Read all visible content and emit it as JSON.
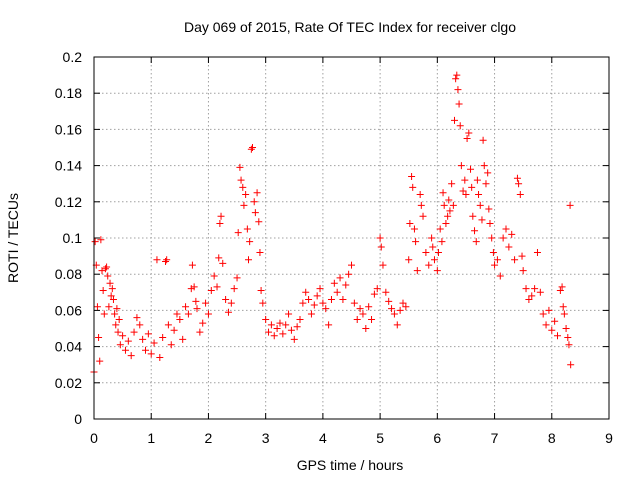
{
  "chart_data": {
    "type": "scatter",
    "title": "Day 069 of 2015, Rate Of TEC Index for receiver clgo",
    "xlabel": "GPS time / hours",
    "ylabel": "ROTI / TECUs",
    "xlim": [
      0,
      9
    ],
    "ylim": [
      0,
      0.2
    ],
    "x_ticks": [
      0,
      1,
      2,
      3,
      4,
      5,
      6,
      7,
      8,
      9
    ],
    "x_tick_labels": [
      "0",
      "1",
      "2",
      "3",
      "4",
      "5",
      "6",
      "7",
      "8",
      "9"
    ],
    "y_ticks": [
      0,
      0.02,
      0.04,
      0.06,
      0.08,
      0.1,
      0.12,
      0.14,
      0.16,
      0.18,
      0.2
    ],
    "y_tick_labels": [
      "0",
      "0.02",
      "0.04",
      "0.06",
      "0.08",
      "0.1",
      "0.12",
      "0.14",
      "0.16",
      "0.18",
      "0.2"
    ],
    "grid": true,
    "marker": "+",
    "marker_color": "#ff0000",
    "series": [
      {
        "name": "ROTI",
        "color": "#ff0000",
        "points": [
          [
            0.0,
            0.026
          ],
          [
            0.02,
            0.098
          ],
          [
            0.04,
            0.085
          ],
          [
            0.06,
            0.062
          ],
          [
            0.08,
            0.045
          ],
          [
            0.1,
            0.032
          ],
          [
            0.12,
            0.099
          ],
          [
            0.14,
            0.082
          ],
          [
            0.16,
            0.071
          ],
          [
            0.18,
            0.058
          ],
          [
            0.2,
            0.083
          ],
          [
            0.22,
            0.084
          ],
          [
            0.24,
            0.079
          ],
          [
            0.26,
            0.062
          ],
          [
            0.28,
            0.075
          ],
          [
            0.3,
            0.068
          ],
          [
            0.32,
            0.072
          ],
          [
            0.34,
            0.066
          ],
          [
            0.36,
            0.058
          ],
          [
            0.38,
            0.052
          ],
          [
            0.4,
            0.061
          ],
          [
            0.42,
            0.048
          ],
          [
            0.44,
            0.055
          ],
          [
            0.46,
            0.041
          ],
          [
            0.5,
            0.046
          ],
          [
            0.55,
            0.038
          ],
          [
            0.6,
            0.043
          ],
          [
            0.65,
            0.035
          ],
          [
            0.7,
            0.048
          ],
          [
            0.75,
            0.056
          ],
          [
            0.8,
            0.052
          ],
          [
            0.85,
            0.044
          ],
          [
            0.9,
            0.038
          ],
          [
            0.95,
            0.047
          ],
          [
            1.0,
            0.036
          ],
          [
            1.05,
            0.042
          ],
          [
            1.1,
            0.088
          ],
          [
            1.15,
            0.034
          ],
          [
            1.2,
            0.045
          ],
          [
            1.25,
            0.087
          ],
          [
            1.27,
            0.088
          ],
          [
            1.3,
            0.052
          ],
          [
            1.35,
            0.041
          ],
          [
            1.4,
            0.049
          ],
          [
            1.45,
            0.058
          ],
          [
            1.5,
            0.055
          ],
          [
            1.55,
            0.044
          ],
          [
            1.6,
            0.062
          ],
          [
            1.65,
            0.058
          ],
          [
            1.7,
            0.072
          ],
          [
            1.72,
            0.085
          ],
          [
            1.75,
            0.073
          ],
          [
            1.78,
            0.065
          ],
          [
            1.8,
            0.061
          ],
          [
            1.85,
            0.048
          ],
          [
            1.9,
            0.053
          ],
          [
            1.95,
            0.064
          ],
          [
            2.0,
            0.058
          ],
          [
            2.05,
            0.071
          ],
          [
            2.1,
            0.079
          ],
          [
            2.15,
            0.073
          ],
          [
            2.18,
            0.089
          ],
          [
            2.2,
            0.108
          ],
          [
            2.22,
            0.112
          ],
          [
            2.25,
            0.086
          ],
          [
            2.3,
            0.066
          ],
          [
            2.35,
            0.059
          ],
          [
            2.4,
            0.064
          ],
          [
            2.45,
            0.072
          ],
          [
            2.5,
            0.078
          ],
          [
            2.52,
            0.103
          ],
          [
            2.55,
            0.139
          ],
          [
            2.57,
            0.132
          ],
          [
            2.6,
            0.128
          ],
          [
            2.62,
            0.118
          ],
          [
            2.65,
            0.124
          ],
          [
            2.68,
            0.105
          ],
          [
            2.7,
            0.088
          ],
          [
            2.72,
            0.098
          ],
          [
            2.75,
            0.149
          ],
          [
            2.77,
            0.15
          ],
          [
            2.8,
            0.12
          ],
          [
            2.82,
            0.114
          ],
          [
            2.85,
            0.125
          ],
          [
            2.88,
            0.109
          ],
          [
            2.9,
            0.092
          ],
          [
            2.92,
            0.071
          ],
          [
            2.95,
            0.064
          ],
          [
            3.0,
            0.055
          ],
          [
            3.05,
            0.048
          ],
          [
            3.1,
            0.052
          ],
          [
            3.15,
            0.046
          ],
          [
            3.2,
            0.05
          ],
          [
            3.25,
            0.053
          ],
          [
            3.3,
            0.047
          ],
          [
            3.35,
            0.052
          ],
          [
            3.4,
            0.058
          ],
          [
            3.45,
            0.049
          ],
          [
            3.5,
            0.044
          ],
          [
            3.55,
            0.051
          ],
          [
            3.6,
            0.055
          ],
          [
            3.65,
            0.064
          ],
          [
            3.7,
            0.07
          ],
          [
            3.75,
            0.066
          ],
          [
            3.8,
            0.058
          ],
          [
            3.85,
            0.063
          ],
          [
            3.9,
            0.068
          ],
          [
            3.95,
            0.072
          ],
          [
            4.0,
            0.064
          ],
          [
            4.05,
            0.061
          ],
          [
            4.1,
            0.052
          ],
          [
            4.15,
            0.066
          ],
          [
            4.2,
            0.075
          ],
          [
            4.25,
            0.07
          ],
          [
            4.3,
            0.078
          ],
          [
            4.35,
            0.066
          ],
          [
            4.4,
            0.074
          ],
          [
            4.45,
            0.08
          ],
          [
            4.5,
            0.085
          ],
          [
            4.55,
            0.064
          ],
          [
            4.6,
            0.055
          ],
          [
            4.65,
            0.061
          ],
          [
            4.7,
            0.058
          ],
          [
            4.75,
            0.05
          ],
          [
            4.8,
            0.062
          ],
          [
            4.85,
            0.055
          ],
          [
            4.9,
            0.069
          ],
          [
            4.95,
            0.072
          ],
          [
            5.0,
            0.1
          ],
          [
            5.02,
            0.095
          ],
          [
            5.05,
            0.085
          ],
          [
            5.1,
            0.07
          ],
          [
            5.15,
            0.065
          ],
          [
            5.2,
            0.061
          ],
          [
            5.25,
            0.058
          ],
          [
            5.3,
            0.052
          ],
          [
            5.35,
            0.06
          ],
          [
            5.4,
            0.064
          ],
          [
            5.45,
            0.062
          ],
          [
            5.5,
            0.088
          ],
          [
            5.52,
            0.108
          ],
          [
            5.55,
            0.134
          ],
          [
            5.57,
            0.128
          ],
          [
            5.6,
            0.105
          ],
          [
            5.62,
            0.098
          ],
          [
            5.65,
            0.082
          ],
          [
            5.7,
            0.124
          ],
          [
            5.72,
            0.118
          ],
          [
            5.75,
            0.112
          ],
          [
            5.8,
            0.092
          ],
          [
            5.85,
            0.085
          ],
          [
            5.9,
            0.1
          ],
          [
            5.92,
            0.095
          ],
          [
            5.95,
            0.088
          ],
          [
            6.0,
            0.082
          ],
          [
            6.02,
            0.092
          ],
          [
            6.05,
            0.105
          ],
          [
            6.08,
            0.098
          ],
          [
            6.1,
            0.125
          ],
          [
            6.12,
            0.118
          ],
          [
            6.15,
            0.108
          ],
          [
            6.18,
            0.112
          ],
          [
            6.2,
            0.121
          ],
          [
            6.22,
            0.115
          ],
          [
            6.25,
            0.13
          ],
          [
            6.28,
            0.118
          ],
          [
            6.3,
            0.165
          ],
          [
            6.32,
            0.188
          ],
          [
            6.34,
            0.19
          ],
          [
            6.36,
            0.182
          ],
          [
            6.38,
            0.174
          ],
          [
            6.4,
            0.162
          ],
          [
            6.42,
            0.14
          ],
          [
            6.45,
            0.126
          ],
          [
            6.48,
            0.132
          ],
          [
            6.5,
            0.124
          ],
          [
            6.52,
            0.155
          ],
          [
            6.55,
            0.158
          ],
          [
            6.58,
            0.138
          ],
          [
            6.6,
            0.128
          ],
          [
            6.62,
            0.112
          ],
          [
            6.65,
            0.104
          ],
          [
            6.68,
            0.098
          ],
          [
            6.7,
            0.132
          ],
          [
            6.72,
            0.124
          ],
          [
            6.75,
            0.118
          ],
          [
            6.78,
            0.11
          ],
          [
            6.8,
            0.154
          ],
          [
            6.82,
            0.14
          ],
          [
            6.85,
            0.13
          ],
          [
            6.88,
            0.136
          ],
          [
            6.9,
            0.116
          ],
          [
            6.92,
            0.108
          ],
          [
            6.95,
            0.1
          ],
          [
            6.98,
            0.092
          ],
          [
            7.0,
            0.085
          ],
          [
            7.05,
            0.088
          ],
          [
            7.1,
            0.079
          ],
          [
            7.15,
            0.1
          ],
          [
            7.2,
            0.105
          ],
          [
            7.25,
            0.095
          ],
          [
            7.3,
            0.102
          ],
          [
            7.35,
            0.088
          ],
          [
            7.4,
            0.133
          ],
          [
            7.42,
            0.13
          ],
          [
            7.45,
            0.124
          ],
          [
            7.48,
            0.09
          ],
          [
            7.5,
            0.082
          ],
          [
            7.55,
            0.072
          ],
          [
            7.6,
            0.066
          ],
          [
            7.65,
            0.068
          ],
          [
            7.7,
            0.072
          ],
          [
            7.75,
            0.092
          ],
          [
            7.8,
            0.07
          ],
          [
            7.85,
            0.058
          ],
          [
            7.9,
            0.052
          ],
          [
            7.95,
            0.06
          ],
          [
            8.0,
            0.049
          ],
          [
            8.05,
            0.054
          ],
          [
            8.1,
            0.046
          ],
          [
            8.15,
            0.071
          ],
          [
            8.18,
            0.073
          ],
          [
            8.2,
            0.062
          ],
          [
            8.22,
            0.058
          ],
          [
            8.25,
            0.05
          ],
          [
            8.28,
            0.045
          ],
          [
            8.3,
            0.041
          ],
          [
            8.32,
            0.118
          ],
          [
            8.33,
            0.03
          ]
        ]
      }
    ]
  }
}
